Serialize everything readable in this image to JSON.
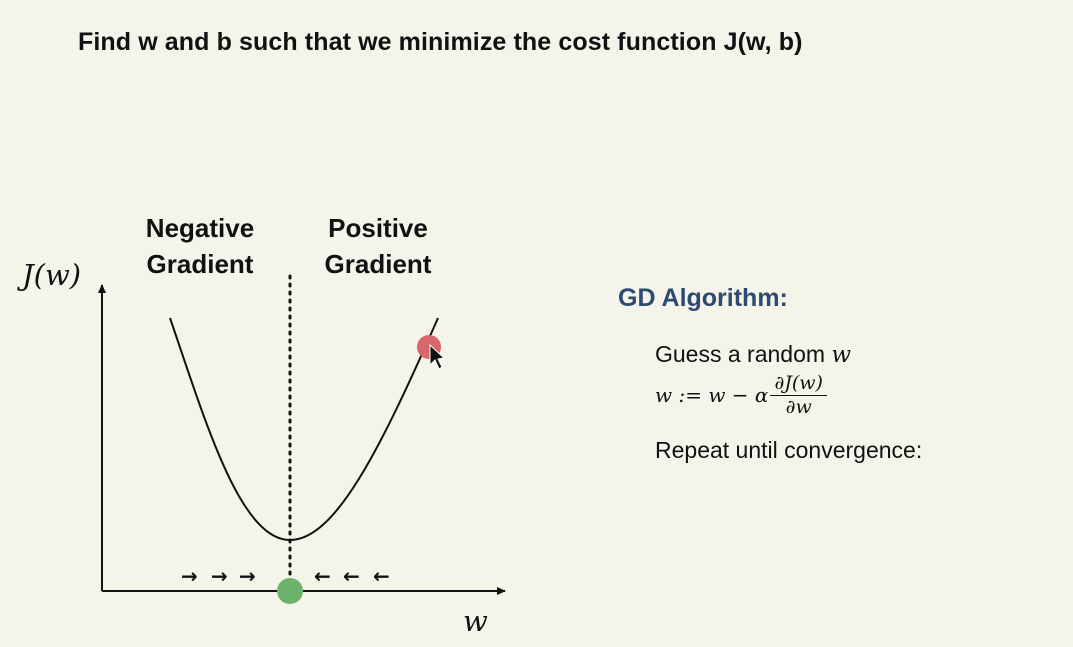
{
  "slide": {
    "title": "Find w and b such that we minimize the cost function J(w, b)"
  },
  "diagram": {
    "y_axis_label": "J(w)",
    "x_axis_label": "w",
    "negative_label_line1": "Negative",
    "negative_label_line2": "Gradient",
    "positive_label_line1": "Positive",
    "positive_label_line2": "Gradient",
    "arrow_left_glyph": "→",
    "arrow_right_glyph": "←",
    "colors": {
      "curve": "#111111",
      "current_point": "#d9666b",
      "minimum_point": "#6db26a",
      "algo_title": "#2d4a73",
      "background": "#f5f4ea"
    }
  },
  "algorithm": {
    "title": "GD Algorithm:",
    "line1_text": "Guess a random ",
    "line1_var": "w",
    "update_lhs": "w := w − α",
    "update_numerator": "∂J(w)",
    "update_denominator": "∂w",
    "line3_text": "Repeat until convergence:"
  }
}
